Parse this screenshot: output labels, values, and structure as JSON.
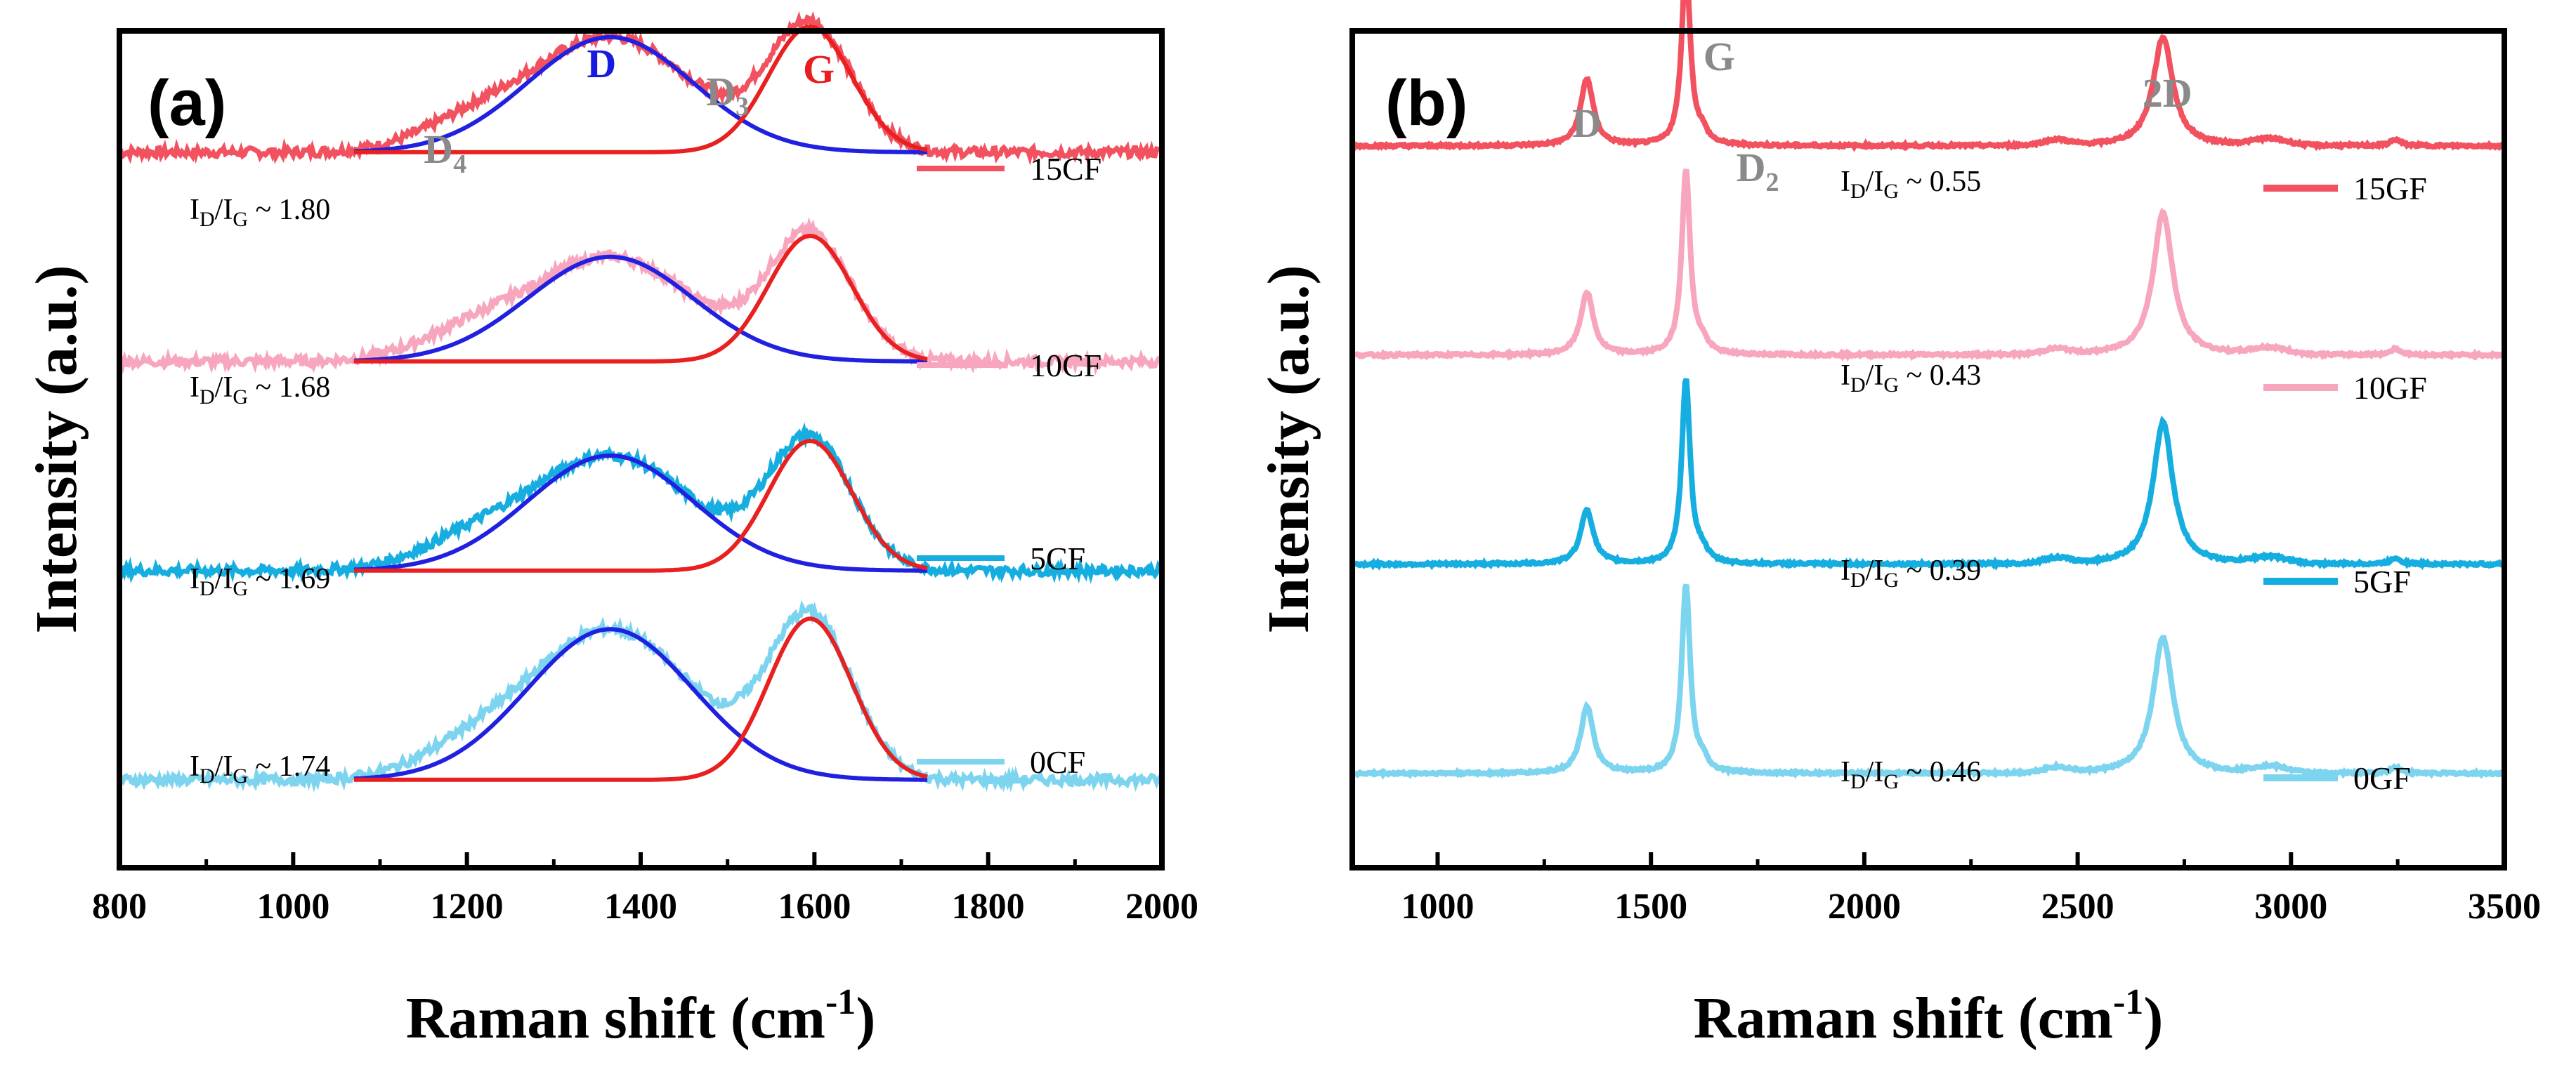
{
  "chart_data": [
    {
      "type": "line",
      "panel_label": "(a)",
      "xlabel": "Raman shift (cm",
      "xlabel_sup": "-1",
      "xlabel_end": ")",
      "ylabel": "Intensity (a.u.)",
      "xlim": [
        800,
        2000
      ],
      "ylim": [
        0,
        4
      ],
      "xticks": [
        "800",
        "1000",
        "1200",
        "1400",
        "1600",
        "1800",
        "2000"
      ],
      "yticks_visible": false,
      "peak_labels": [
        {
          "main": "D",
          "sub": "",
          "x": 1355,
          "color": "#1a1adf"
        },
        {
          "main": "D",
          "sub": "3",
          "x": 1500,
          "color": "#8a8a8a"
        },
        {
          "main": "G",
          "sub": "",
          "x": 1605,
          "color": "#e81e1e"
        },
        {
          "main": "D",
          "sub": "4",
          "x": 1175,
          "color": "#8a8a8a"
        }
      ],
      "fit_colors": {
        "D": "#2020e0",
        "G": "#e82020"
      },
      "series": [
        {
          "name": "15CF",
          "color": "#f2525f",
          "baseline": 3.42,
          "D_amp": 0.55,
          "G_amp": 0.6,
          "D_center": 1365,
          "D_width": 95,
          "G_center": 1595,
          "G_width": 48,
          "ratio": "1.80"
        },
        {
          "name": "10CF",
          "color": "#f7a6bd",
          "baseline": 2.42,
          "D_amp": 0.5,
          "G_amp": 0.6,
          "D_center": 1365,
          "D_width": 95,
          "G_center": 1595,
          "G_width": 48,
          "ratio": "1.68"
        },
        {
          "name": "5CF",
          "color": "#16aee0",
          "baseline": 1.42,
          "D_amp": 0.55,
          "G_amp": 0.62,
          "D_center": 1365,
          "D_width": 95,
          "G_center": 1595,
          "G_width": 48,
          "ratio": "1.69"
        },
        {
          "name": "0CF",
          "color": "#7dd4ef",
          "baseline": 0.42,
          "D_amp": 0.72,
          "G_amp": 0.77,
          "D_center": 1365,
          "D_width": 95,
          "G_center": 1595,
          "G_width": 48,
          "ratio": "1.74"
        }
      ],
      "ratio_prefix": "I",
      "ratio_sub1": "D",
      "ratio_sep": "/I",
      "ratio_sub2": "G",
      "ratio_tilde": " ~ "
    },
    {
      "type": "line",
      "panel_label": "(b)",
      "xlabel": "Raman shift (cm",
      "xlabel_sup": "-1",
      "xlabel_end": ")",
      "ylabel": "Intensity (a.u.)",
      "xlim": [
        800,
        3500
      ],
      "ylim": [
        0,
        4
      ],
      "xticks": [
        "1000",
        "1500",
        "2000",
        "2500",
        "3000",
        "3500"
      ],
      "yticks_visible": false,
      "peak_labels": [
        {
          "main": "D",
          "sub": "",
          "x": 1350,
          "color": "#8a8a8a"
        },
        {
          "main": "G",
          "sub": "",
          "x": 1660,
          "color": "#8a8a8a"
        },
        {
          "main": "D",
          "sub": "2",
          "x": 1750,
          "color": "#8a8a8a"
        },
        {
          "main": "2D",
          "sub": "",
          "x": 2710,
          "color": "#8a8a8a"
        }
      ],
      "series": [
        {
          "name": "15GF",
          "color": "#f2525f",
          "baseline": 3.45,
          "D_amp": 0.32,
          "G_amp": 0.88,
          "TwoD_amp": 0.52,
          "ratio": "0.55"
        },
        {
          "name": "10GF",
          "color": "#f7a6bd",
          "baseline": 2.45,
          "D_amp": 0.3,
          "G_amp": 0.88,
          "TwoD_amp": 0.68,
          "ratio": "0.43"
        },
        {
          "name": "5GF",
          "color": "#16aee0",
          "baseline": 1.45,
          "D_amp": 0.26,
          "G_amp": 0.88,
          "TwoD_amp": 0.68,
          "ratio": "0.39"
        },
        {
          "name": "0GF",
          "color": "#7dd4ef",
          "baseline": 0.45,
          "D_amp": 0.32,
          "G_amp": 0.9,
          "TwoD_amp": 0.65,
          "ratio": "0.46"
        }
      ],
      "ratio_prefix": "I",
      "ratio_sub1": "D",
      "ratio_sep": "/I",
      "ratio_sub2": "G",
      "ratio_tilde": " ~ "
    }
  ]
}
